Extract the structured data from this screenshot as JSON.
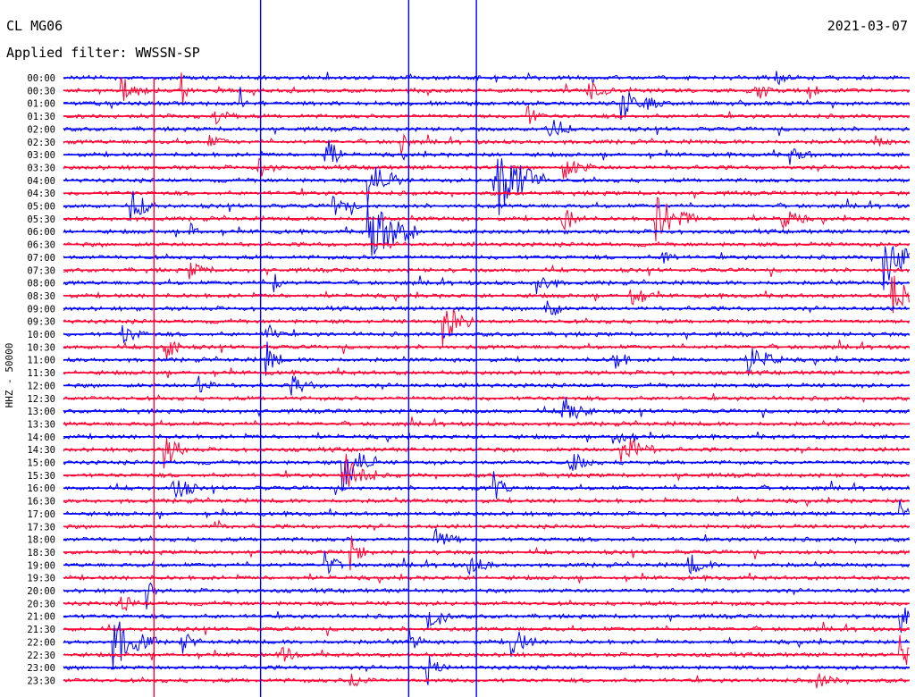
{
  "header": {
    "station": "CL MG06",
    "date": "2021-03-07",
    "filter": "Applied filter: WWSSN-SP"
  },
  "colors": {
    "trace_a": "#0000ff",
    "trace_b": "#ff0033"
  },
  "chart_data": {
    "type": "line",
    "title": "CL MG06",
    "subtitle": "Applied filter: WWSSN-SP",
    "ylabel": "HHZ - 50000",
    "ytick_labels": [
      "00:00",
      "00:30",
      "01:00",
      "01:30",
      "02:00",
      "02:30",
      "03:00",
      "03:30",
      "04:00",
      "04:30",
      "05:00",
      "05:30",
      "06:00",
      "06:30",
      "07:00",
      "07:30",
      "08:00",
      "08:30",
      "09:00",
      "09:30",
      "10:00",
      "10:30",
      "11:00",
      "11:30",
      "12:00",
      "12:30",
      "13:00",
      "13:30",
      "14:00",
      "14:30",
      "15:00",
      "15:30",
      "16:00",
      "16:30",
      "17:00",
      "17:30",
      "18:00",
      "18:30",
      "19:00",
      "19:30",
      "20:00",
      "20:30",
      "21:00",
      "21:30",
      "22:00",
      "22:30",
      "23:00",
      "23:30"
    ],
    "trace_colors": [
      "blue",
      "red"
    ],
    "minutes_per_line": 30,
    "grid": false,
    "events": [
      {
        "line": 0,
        "t": 0.84,
        "amp": 0.7,
        "len": 0.02
      },
      {
        "line": 1,
        "t": 0.07,
        "amp": 1.0,
        "len": 0.03
      },
      {
        "line": 1,
        "t": 0.14,
        "amp": 1.3,
        "len": 0.01
      },
      {
        "line": 1,
        "t": 0.62,
        "amp": 0.8,
        "len": 0.03
      },
      {
        "line": 1,
        "t": 0.82,
        "amp": 0.6,
        "len": 0.03
      },
      {
        "line": 1,
        "t": 0.88,
        "amp": 0.6,
        "len": 0.02
      },
      {
        "line": 2,
        "t": 0.66,
        "amp": 1.3,
        "len": 0.05
      },
      {
        "line": 2,
        "t": 0.21,
        "amp": 0.9,
        "len": 0.01
      },
      {
        "line": 3,
        "t": 0.18,
        "amp": 0.6,
        "len": 0.03
      },
      {
        "line": 3,
        "t": 0.55,
        "amp": 0.7,
        "len": 0.02
      },
      {
        "line": 4,
        "t": 0.57,
        "amp": 1.2,
        "len": 0.03
      },
      {
        "line": 5,
        "t": 0.17,
        "amp": 0.5,
        "len": 0.03
      },
      {
        "line": 5,
        "t": 0.4,
        "amp": 1.4,
        "len": 0.01
      },
      {
        "line": 5,
        "t": 0.96,
        "amp": 0.5,
        "len": 0.02
      },
      {
        "line": 6,
        "t": 0.31,
        "amp": 2.2,
        "len": 0.02
      },
      {
        "line": 6,
        "t": 0.86,
        "amp": 0.6,
        "len": 0.03
      },
      {
        "line": 7,
        "t": 0.23,
        "amp": 0.7,
        "len": 0.03
      },
      {
        "line": 7,
        "t": 0.59,
        "amp": 0.9,
        "len": 0.04
      },
      {
        "line": 8,
        "t": 0.36,
        "amp": 2.0,
        "len": 0.04
      },
      {
        "line": 8,
        "t": 0.51,
        "amp": 3.5,
        "len": 0.06
      },
      {
        "line": 10,
        "t": 0.08,
        "amp": 1.3,
        "len": 0.03
      },
      {
        "line": 10,
        "t": 0.32,
        "amp": 0.8,
        "len": 0.03
      },
      {
        "line": 11,
        "t": 0.59,
        "amp": 1.1,
        "len": 0.03
      },
      {
        "line": 11,
        "t": 0.7,
        "amp": 2.0,
        "len": 0.05
      },
      {
        "line": 11,
        "t": 0.85,
        "amp": 0.9,
        "len": 0.03
      },
      {
        "line": 12,
        "t": 0.36,
        "amp": 3.0,
        "len": 0.06
      },
      {
        "line": 12,
        "t": 0.15,
        "amp": 0.6,
        "len": 0.02
      },
      {
        "line": 14,
        "t": 0.97,
        "amp": 2.5,
        "len": 0.04
      },
      {
        "line": 14,
        "t": 0.71,
        "amp": 0.6,
        "len": 0.02
      },
      {
        "line": 15,
        "t": 0.15,
        "amp": 0.6,
        "len": 0.03
      },
      {
        "line": 16,
        "t": 0.56,
        "amp": 1.0,
        "len": 0.03
      },
      {
        "line": 16,
        "t": 0.25,
        "amp": 1.0,
        "len": 0.01
      },
      {
        "line": 17,
        "t": 0.67,
        "amp": 1.0,
        "len": 0.03
      },
      {
        "line": 17,
        "t": 0.98,
        "amp": 2.0,
        "len": 0.03
      },
      {
        "line": 18,
        "t": 0.57,
        "amp": 1.5,
        "len": 0.02
      },
      {
        "line": 19,
        "t": 0.45,
        "amp": 1.6,
        "len": 0.04
      },
      {
        "line": 20,
        "t": 0.07,
        "amp": 0.8,
        "len": 0.03
      },
      {
        "line": 20,
        "t": 0.24,
        "amp": 1.0,
        "len": 0.02
      },
      {
        "line": 21,
        "t": 0.12,
        "amp": 1.6,
        "len": 0.02
      },
      {
        "line": 22,
        "t": 0.24,
        "amp": 1.5,
        "len": 0.02
      },
      {
        "line": 22,
        "t": 0.65,
        "amp": 1.2,
        "len": 0.02
      },
      {
        "line": 22,
        "t": 0.81,
        "amp": 1.3,
        "len": 0.04
      },
      {
        "line": 24,
        "t": 0.27,
        "amp": 0.8,
        "len": 0.03
      },
      {
        "line": 24,
        "t": 0.16,
        "amp": 0.9,
        "len": 0.02
      },
      {
        "line": 26,
        "t": 0.59,
        "amp": 1.2,
        "len": 0.04
      },
      {
        "line": 28,
        "t": 0.65,
        "amp": 0.8,
        "len": 0.03
      },
      {
        "line": 29,
        "t": 0.12,
        "amp": 1.5,
        "len": 0.03
      },
      {
        "line": 29,
        "t": 0.66,
        "amp": 1.3,
        "len": 0.04
      },
      {
        "line": 30,
        "t": 0.6,
        "amp": 0.8,
        "len": 0.03
      },
      {
        "line": 30,
        "t": 0.33,
        "amp": 2.5,
        "len": 0.04
      },
      {
        "line": 31,
        "t": 0.33,
        "amp": 2.0,
        "len": 0.04
      },
      {
        "line": 32,
        "t": 0.13,
        "amp": 1.2,
        "len": 0.03
      },
      {
        "line": 32,
        "t": 0.51,
        "amp": 1.2,
        "len": 0.02
      },
      {
        "line": 34,
        "t": 0.99,
        "amp": 0.8,
        "len": 0.02
      },
      {
        "line": 35,
        "t": 0.18,
        "amp": 1.0,
        "len": 0.01
      },
      {
        "line": 36,
        "t": 0.44,
        "amp": 0.9,
        "len": 0.03
      },
      {
        "line": 37,
        "t": 0.34,
        "amp": 1.4,
        "len": 0.02
      },
      {
        "line": 38,
        "t": 0.48,
        "amp": 0.8,
        "len": 0.03
      },
      {
        "line": 38,
        "t": 0.31,
        "amp": 1.0,
        "len": 0.02
      },
      {
        "line": 38,
        "t": 0.74,
        "amp": 0.8,
        "len": 0.03
      },
      {
        "line": 40,
        "t": 0.1,
        "amp": 1.0,
        "len": 0.01
      },
      {
        "line": 41,
        "t": 0.07,
        "amp": 0.8,
        "len": 0.02
      },
      {
        "line": 42,
        "t": 0.43,
        "amp": 1.6,
        "len": 0.03
      },
      {
        "line": 42,
        "t": 0.99,
        "amp": 1.2,
        "len": 0.02
      },
      {
        "line": 44,
        "t": 0.06,
        "amp": 2.0,
        "len": 0.05
      },
      {
        "line": 44,
        "t": 0.14,
        "amp": 0.9,
        "len": 0.02
      },
      {
        "line": 44,
        "t": 0.41,
        "amp": 0.8,
        "len": 0.02
      },
      {
        "line": 44,
        "t": 0.53,
        "amp": 1.3,
        "len": 0.03
      },
      {
        "line": 45,
        "t": 0.26,
        "amp": 0.8,
        "len": 0.02
      },
      {
        "line": 45,
        "t": 0.99,
        "amp": 1.5,
        "len": 0.02
      },
      {
        "line": 46,
        "t": 0.43,
        "amp": 1.4,
        "len": 0.02
      },
      {
        "line": 47,
        "t": 0.34,
        "amp": 0.6,
        "len": 0.03
      },
      {
        "line": 47,
        "t": 0.89,
        "amp": 0.6,
        "len": 0.03
      }
    ],
    "spikes": [
      {
        "t": 0.107,
        "from": 0.0,
        "to": 1.0,
        "color": "red"
      },
      {
        "t": 0.233,
        "from": -0.3,
        "to": 1.0,
        "color": "blue"
      },
      {
        "t": 0.408,
        "from": -0.3,
        "to": 1.0,
        "color": "blue"
      },
      {
        "t": 0.488,
        "from": -0.3,
        "to": 1.0,
        "color": "blue"
      }
    ]
  }
}
